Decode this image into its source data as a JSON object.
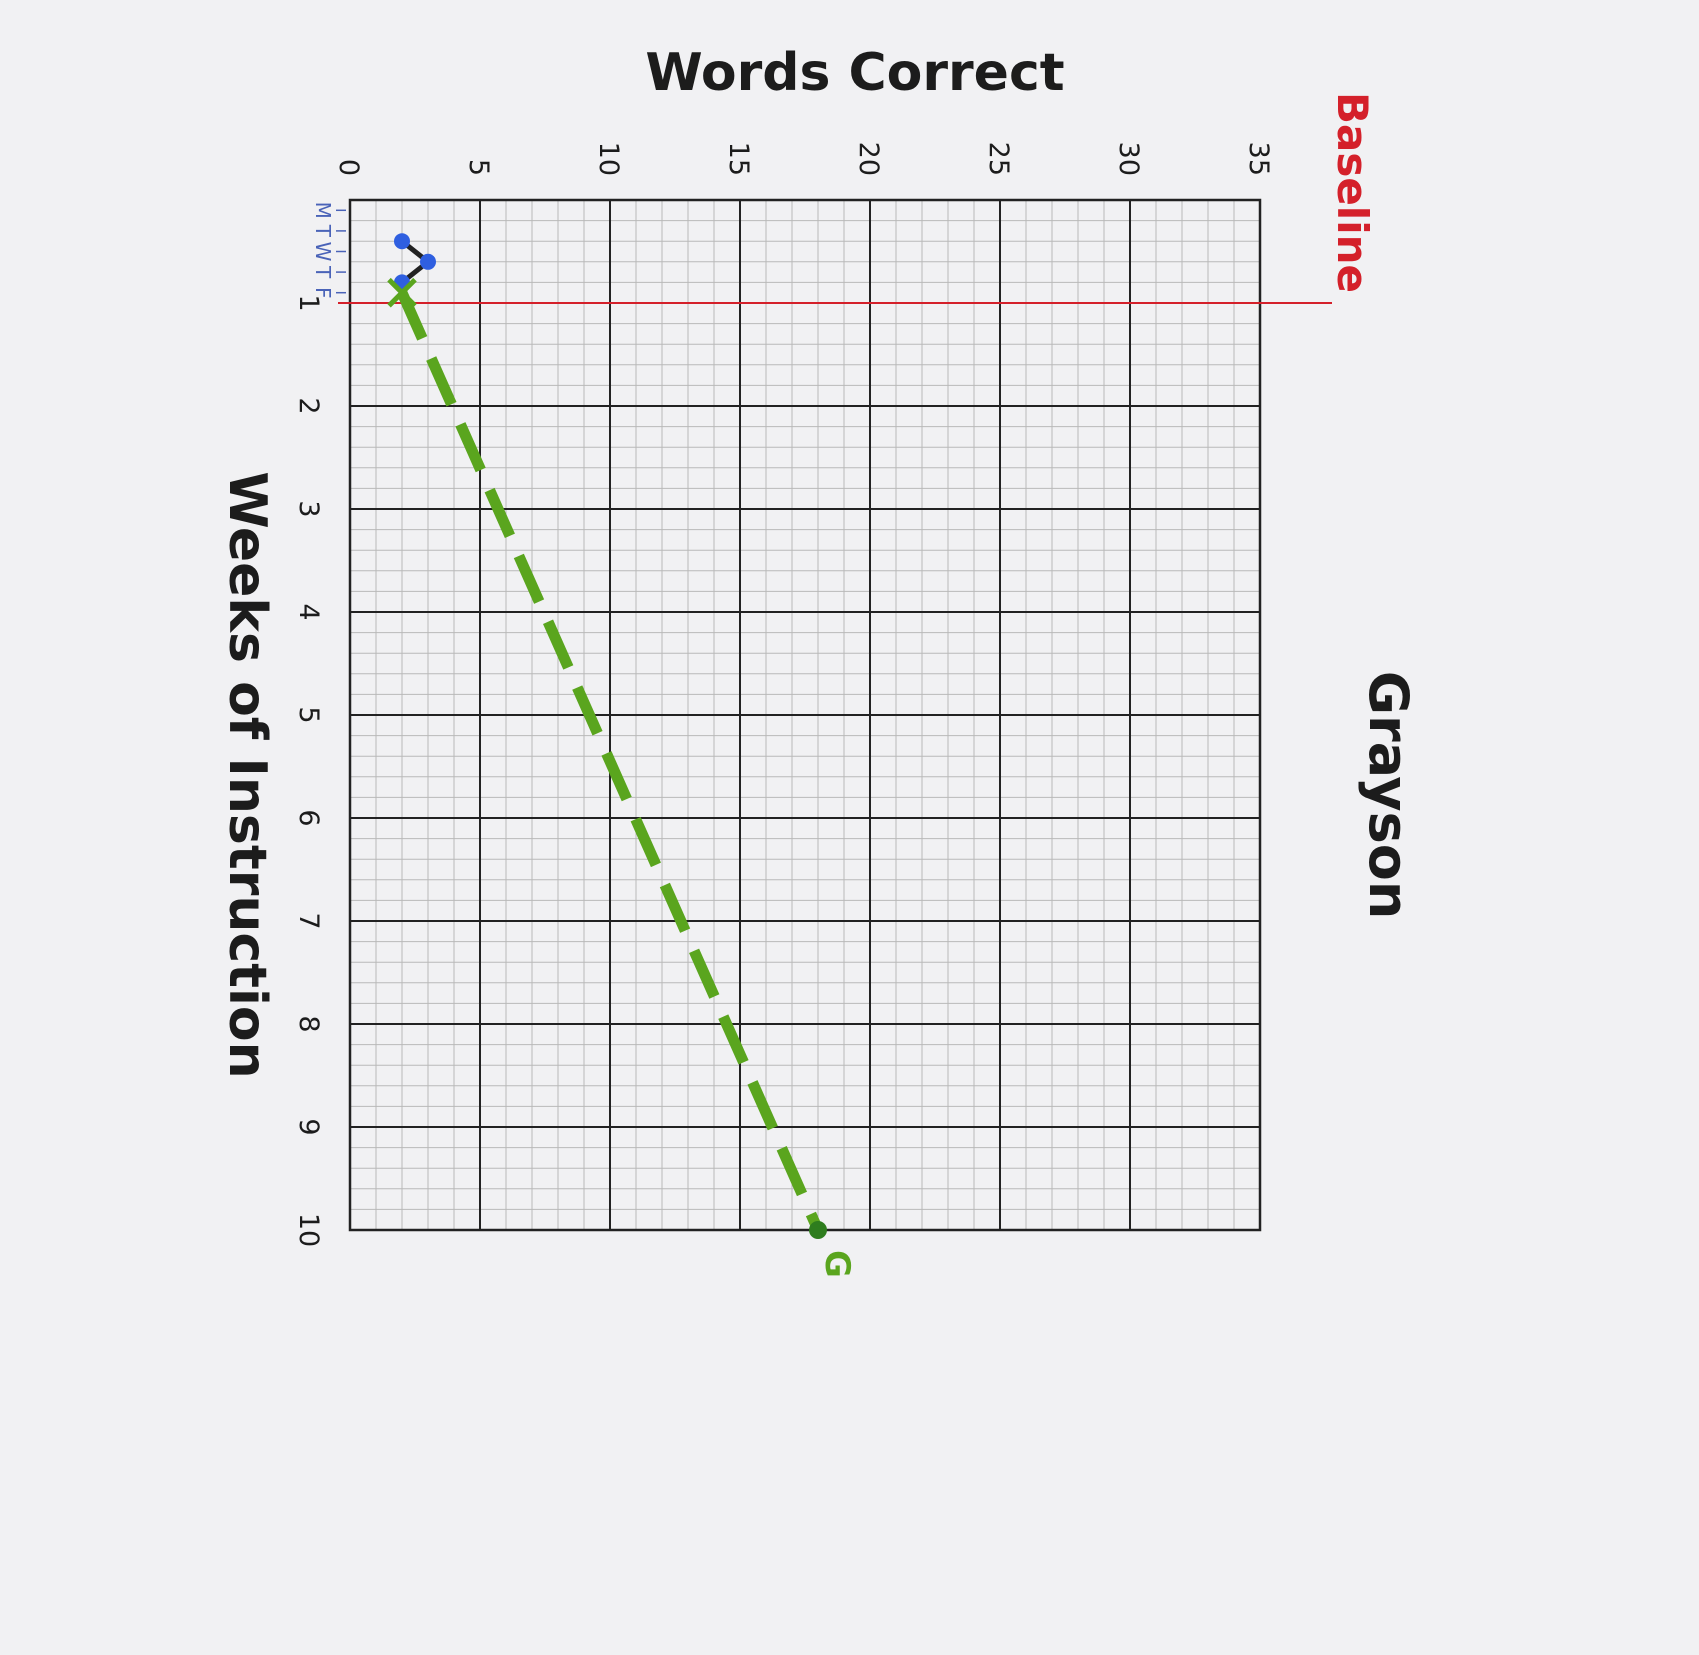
{
  "chart_data": {
    "type": "line",
    "title": "Grayson",
    "xlabel": "Weeks of Instruction",
    "ylabel": "Words Correct",
    "xlim": [
      0,
      10
    ],
    "ylim": [
      0,
      35
    ],
    "x_ticks": [
      1,
      2,
      3,
      4,
      5,
      6,
      7,
      8,
      9,
      10
    ],
    "y_ticks": [
      0,
      5,
      10,
      15,
      20,
      25,
      30,
      35
    ],
    "day_labels": [
      "M",
      "T",
      "W",
      "T",
      "F"
    ],
    "grid": true,
    "baseline": {
      "label": "Baseline",
      "x": 1.0,
      "color": "#d4202a"
    },
    "series": [
      {
        "style": "solid-markers",
        "color": "#2f5fe0",
        "points": [
          {
            "x": 0.4,
            "y": 2
          },
          {
            "x": 0.6,
            "y": 3
          },
          {
            "x": 0.8,
            "y": 2
          }
        ]
      },
      {
        "style": "dashed",
        "color": "#5aa51e",
        "points": [
          {
            "x": 0.9,
            "y": 2
          },
          {
            "x": 10.0,
            "y": 18
          }
        ],
        "start_marker": "X",
        "end_label": "G"
      }
    ]
  }
}
